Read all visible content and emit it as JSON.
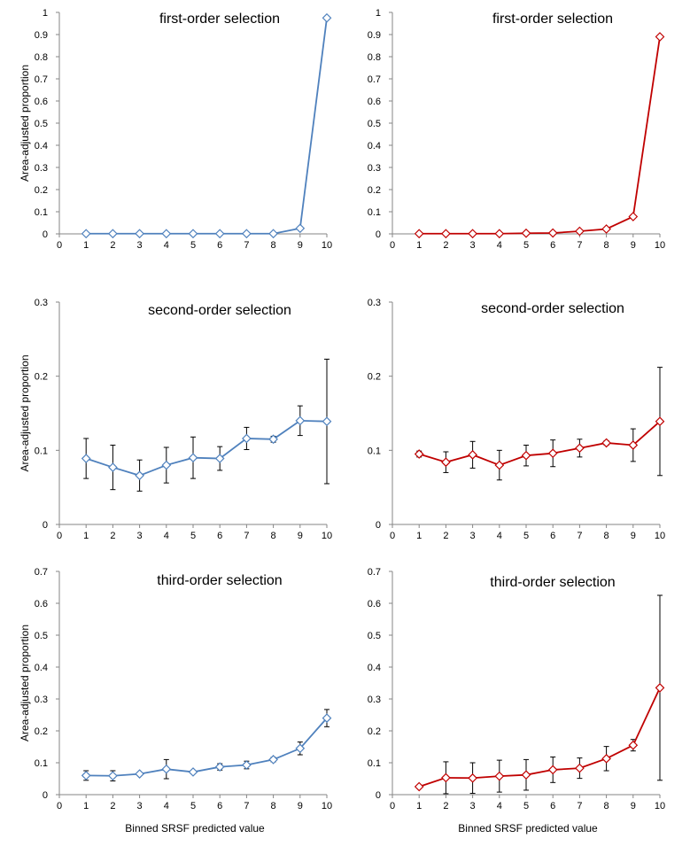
{
  "figure": {
    "ylabel": "Area-adjusted proportion",
    "xlabel": "Binned SRSF predicted value"
  },
  "chart_data": [
    {
      "type": "line",
      "title": "first-order selection",
      "color": "#4F81BD",
      "marker": "diamond",
      "x": [
        1,
        2,
        3,
        4,
        5,
        6,
        7,
        8,
        9,
        10
      ],
      "values": [
        0.001,
        0.001,
        0.001,
        0.001,
        0.001,
        0.001,
        0.001,
        0.001,
        0.025,
        0.975
      ],
      "error": [
        0,
        0,
        0,
        0,
        0,
        0,
        0,
        0,
        0,
        0
      ],
      "xlim": [
        0,
        10
      ],
      "ylim": [
        0,
        1
      ],
      "xticks": [
        "0",
        "1",
        "2",
        "3",
        "4",
        "5",
        "6",
        "7",
        "8",
        "9",
        "10"
      ],
      "yticks": [
        "0",
        "0.1",
        "0.2",
        "0.3",
        "0.4",
        "0.5",
        "0.6",
        "0.7",
        "0.8",
        "0.9",
        "1"
      ],
      "ylabel": "Area-adjusted proportion",
      "xlabel": ""
    },
    {
      "type": "line",
      "title": "first-order selection",
      "color": "#C00000",
      "marker": "diamond",
      "x": [
        1,
        2,
        3,
        4,
        5,
        6,
        7,
        8,
        9,
        10
      ],
      "values": [
        0.001,
        0.001,
        0.001,
        0.001,
        0.003,
        0.004,
        0.012,
        0.022,
        0.078,
        0.89
      ],
      "error": [
        0,
        0,
        0,
        0,
        0,
        0,
        0,
        0,
        0,
        0
      ],
      "xlim": [
        0,
        10
      ],
      "ylim": [
        0,
        1
      ],
      "xticks": [
        "0",
        "1",
        "2",
        "3",
        "4",
        "5",
        "6",
        "7",
        "8",
        "9",
        "10"
      ],
      "yticks": [
        "0",
        "0.1",
        "0.2",
        "0.3",
        "0.4",
        "0.5",
        "0.6",
        "0.7",
        "0.8",
        "0.9",
        "1"
      ],
      "ylabel": "",
      "xlabel": ""
    },
    {
      "type": "line",
      "title": "second-order selection",
      "color": "#4F81BD",
      "marker": "diamond",
      "x": [
        1,
        2,
        3,
        4,
        5,
        6,
        7,
        8,
        9,
        10
      ],
      "values": [
        0.089,
        0.077,
        0.066,
        0.08,
        0.09,
        0.089,
        0.116,
        0.115,
        0.14,
        0.139
      ],
      "error": [
        0.027,
        0.03,
        0.021,
        0.024,
        0.028,
        0.016,
        0.015,
        0.004,
        0.02,
        0.084
      ],
      "xlim": [
        0,
        10
      ],
      "ylim": [
        0,
        0.3
      ],
      "xticks": [
        "0",
        "1",
        "2",
        "3",
        "4",
        "5",
        "6",
        "7",
        "8",
        "9",
        "10"
      ],
      "yticks": [
        "0",
        "0.1",
        "0.2",
        "0.3"
      ],
      "ylabel": "Area-adjusted proportion",
      "xlabel": ""
    },
    {
      "type": "line",
      "title": "second-order selection",
      "color": "#C00000",
      "marker": "diamond",
      "x": [
        1,
        2,
        3,
        4,
        5,
        6,
        7,
        8,
        9,
        10
      ],
      "values": [
        0.095,
        0.084,
        0.094,
        0.08,
        0.093,
        0.096,
        0.103,
        0.11,
        0.107,
        0.139
      ],
      "error": [
        0.004,
        0.014,
        0.018,
        0.02,
        0.014,
        0.018,
        0.012,
        0.003,
        0.022,
        0.073
      ],
      "xlim": [
        0,
        10
      ],
      "ylim": [
        0,
        0.3
      ],
      "xticks": [
        "0",
        "1",
        "2",
        "3",
        "4",
        "5",
        "6",
        "7",
        "8",
        "9",
        "10"
      ],
      "yticks": [
        "0",
        "0.1",
        "0.2",
        "0.3"
      ],
      "ylabel": "",
      "xlabel": ""
    },
    {
      "type": "line",
      "title": "third-order selection",
      "color": "#4F81BD",
      "marker": "diamond",
      "x": [
        1,
        2,
        3,
        4,
        5,
        6,
        7,
        8,
        9,
        10
      ],
      "values": [
        0.06,
        0.059,
        0.065,
        0.08,
        0.071,
        0.087,
        0.093,
        0.11,
        0.145,
        0.24
      ],
      "error": [
        0.015,
        0.016,
        0,
        0.03,
        0,
        0.01,
        0.012,
        0.007,
        0.02,
        0.027
      ],
      "xlim": [
        0,
        10
      ],
      "ylim": [
        0,
        0.7
      ],
      "xticks": [
        "0",
        "1",
        "2",
        "3",
        "4",
        "5",
        "6",
        "7",
        "8",
        "9",
        "10"
      ],
      "yticks": [
        "0",
        "0.1",
        "0.2",
        "0.3",
        "0.4",
        "0.5",
        "0.6",
        "0.7"
      ],
      "ylabel": "Area-adjusted proportion",
      "xlabel": "Binned SRSF predicted value"
    },
    {
      "type": "line",
      "title": "third-order selection",
      "color": "#C00000",
      "marker": "diamond",
      "x": [
        1,
        2,
        3,
        4,
        5,
        6,
        7,
        8,
        9,
        10
      ],
      "values": [
        0.025,
        0.053,
        0.052,
        0.058,
        0.062,
        0.078,
        0.083,
        0.113,
        0.155,
        0.335
      ],
      "error": [
        0,
        0.05,
        0.048,
        0.05,
        0.048,
        0.04,
        0.032,
        0.038,
        0.018,
        0.29
      ],
      "xlim": [
        0,
        10
      ],
      "ylim": [
        0,
        0.7
      ],
      "xticks": [
        "0",
        "1",
        "2",
        "3",
        "4",
        "5",
        "6",
        "7",
        "8",
        "9",
        "10"
      ],
      "yticks": [
        "0",
        "0.1",
        "0.2",
        "0.3",
        "0.4",
        "0.5",
        "0.6",
        "0.7"
      ],
      "ylabel": "",
      "xlabel": "Binned SRSF predicted value"
    }
  ]
}
